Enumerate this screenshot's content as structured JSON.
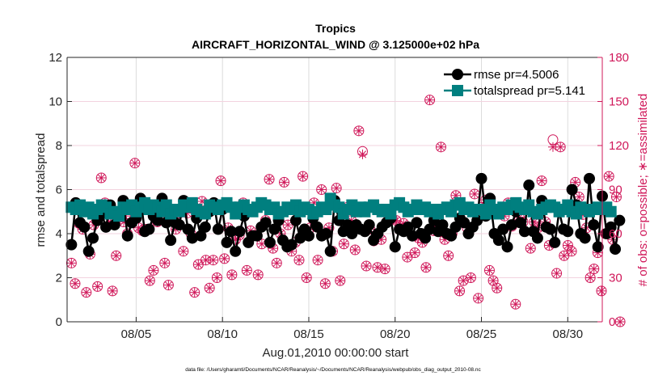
{
  "chart_data": {
    "type": "line",
    "title": "Tropics",
    "subtitle": "AIRCRAFT_HORIZONTAL_WIND @ 3.125000e+02 hPa",
    "xlabel": "Aug.01,2010 00:00:00 start",
    "ylabel": "rmse and totalspread",
    "y2label": "# of obs: o=possible; ∗=assimilated",
    "footnote": "data file: /Users/gharamti/Documents/NCAR/Reanalysis/~/Documents/NCAR/Reanalysis/webpub/obs_diag_output_2010-08.nc",
    "x_unit": "day of August 2010",
    "xlim": [
      1.0,
      32.0
    ],
    "ylim": [
      0,
      12
    ],
    "y2lim": [
      0,
      180
    ],
    "x_ticks": [
      5,
      10,
      15,
      20,
      25,
      30
    ],
    "x_tick_labels": [
      "08/05",
      "08/10",
      "08/15",
      "08/20",
      "08/25",
      "08/30"
    ],
    "y_ticks": [
      0,
      2,
      4,
      6,
      8,
      10,
      12
    ],
    "y_tick_labels": [
      "0",
      "2",
      "4",
      "6",
      "8",
      "10",
      "12"
    ],
    "y2_ticks": [
      0,
      30,
      60,
      90,
      120,
      150,
      180
    ],
    "y2_tick_labels": [
      "0",
      "30",
      "60",
      "90",
      "120",
      "150",
      "180"
    ],
    "grid": true,
    "legend_position": "top-right",
    "x_start": 1.25,
    "x_step": 0.25,
    "series": [
      {
        "name": "rmse pr=4.5006",
        "axis": "left",
        "color": "#000000",
        "marker": "circle",
        "values": [
          3.5,
          5.4,
          4.5,
          4.3,
          3.2,
          3.8,
          4.6,
          4.9,
          4.3,
          5.3,
          4.4,
          4.9,
          5.5,
          3.9,
          4.5,
          4.7,
          5.6,
          4.1,
          4.2,
          4.8,
          4.6,
          5.6,
          4.5,
          3.7,
          4.5,
          4.4,
          5.5,
          4.2,
          3.8,
          4.7,
          3.9,
          4.3,
          5.0,
          5.4,
          4.2,
          5.1,
          3.6,
          4.1,
          3.2,
          4.1,
          4.8,
          3.6,
          3.9,
          3.9,
          4.3,
          4.5,
          3.6,
          4.2,
          4.6,
          3.7,
          3.4,
          3.5,
          4.6,
          3.8,
          4.2,
          3.9,
          4.7,
          4.3,
          3.9,
          4.0,
          3.2,
          5.5,
          4.6,
          4.1,
          4.4,
          4.0,
          4.4,
          4.2,
          4.1,
          4.4,
          3.7,
          4.0,
          4.3,
          4.5,
          4.7,
          3.4,
          4.2,
          4.1,
          4.3,
          3.9,
          4.5,
          4.0,
          3.8,
          4.2,
          4.6,
          4.1,
          4.4,
          4.0,
          3.9,
          4.3,
          4.7,
          4.5,
          4.0,
          4.3,
          4.6,
          6.5,
          4.8,
          5.6,
          4.0,
          3.7,
          4.2,
          3.4,
          4.4,
          5.0,
          4.5,
          4.1,
          6.2,
          4.1,
          3.8,
          5.5,
          4.3,
          4.2,
          3.6,
          5.0,
          4.2,
          4.1,
          6.0,
          5.3,
          4.0,
          3.8,
          6.5,
          4.4,
          3.4,
          5.7,
          4.0,
          4.3,
          3.3,
          4.6
        ]
      },
      {
        "name": "totalspread pr=5.141",
        "axis": "left",
        "color": "#007f7f",
        "marker": "square",
        "values": [
          5.2,
          5.1,
          5.3,
          5.0,
          5.2,
          4.9,
          5.1,
          5.3,
          5.2,
          4.9,
          5.0,
          4.8,
          5.2,
          5.1,
          5.3,
          5.0,
          5.2,
          5.4,
          5.1,
          5.3,
          5.2,
          5.0,
          5.3,
          4.9,
          5.1,
          5.0,
          5.3,
          5.2,
          5.4,
          5.1,
          5.0,
          4.9,
          5.3,
          5.2,
          5.1,
          5.3,
          5.4,
          5.2,
          4.9,
          5.2,
          5.3,
          5.1,
          5.0,
          5.2,
          5.4,
          5.3,
          5.1,
          5.2,
          4.9,
          5.0,
          5.2,
          5.1,
          5.3,
          5.0,
          5.2,
          5.1,
          4.9,
          5.0,
          5.2,
          5.1,
          5.6,
          5.3,
          5.2,
          4.9,
          5.1,
          5.3,
          5.0,
          5.2,
          5.0,
          5.2,
          5.3,
          5.1,
          5.0,
          5.1,
          4.9,
          5.3,
          5.4,
          5.2,
          5.0,
          5.1,
          5.3,
          5.1,
          5.2,
          5.0,
          5.1,
          4.9,
          5.1,
          5.2,
          5.0,
          5.3,
          5.4,
          5.1,
          5.2,
          5.0,
          5.1,
          5.1,
          4.9,
          5.3,
          5.1,
          4.9,
          5.2,
          5.1,
          5.3,
          5.4,
          5.2,
          5.1,
          5.3,
          5.0,
          4.9,
          5.1,
          5.2,
          5.3,
          5.2,
          5.0,
          5.1,
          5.3,
          5.0,
          4.9,
          5.2,
          5.1,
          5.0,
          5.1,
          5.2,
          5.1,
          5.2,
          5.0
        ]
      },
      {
        "name": "# obs possible",
        "axis": "right",
        "color": "#d0185a",
        "marker": "open-circle",
        "values": [
          40,
          26,
          67,
          63,
          20,
          46,
          66,
          24,
          98,
          81,
          68,
          21,
          45,
          70,
          68,
          60,
          72,
          108,
          64,
          62,
          63,
          28,
          35,
          68,
          73,
          40,
          25,
          72,
          63,
          74,
          48,
          74,
          60,
          20,
          39,
          82,
          42,
          23,
          42,
          30,
          96,
          43,
          64,
          32,
          56,
          59,
          81,
          35,
          62,
          59,
          32,
          53,
          69,
          97,
          50,
          40,
          60,
          95,
          66,
          48,
          54,
          42,
          99,
          30,
          64,
          81,
          42,
          90,
          26,
          64,
          48,
          91,
          28,
          53,
          78,
          69,
          49,
          130,
          116,
          38,
          63,
          55,
          37,
          56,
          36,
          72,
          70,
          69,
          65,
          67,
          44,
          76,
          47,
          57,
          54,
          37,
          151,
          62,
          63,
          119,
          56,
          45,
          60,
          86,
          21,
          28,
          64,
          30,
          87,
          16,
          78,
          83,
          35,
          28,
          23,
          75,
          72,
          81,
          65,
          12,
          71,
          68,
          77,
          50,
          68,
          64,
          96,
          68,
          52,
          124,
          33,
          119,
          45,
          52,
          48,
          95,
          85,
          73,
          64,
          30,
          36,
          47,
          21,
          60,
          99,
          56,
          85,
          0
        ]
      },
      {
        "name": "# obs assimilated",
        "axis": "right",
        "color": "#d0185a",
        "marker": "asterisk",
        "values": [
          40,
          26,
          67,
          63,
          20,
          46,
          66,
          24,
          98,
          81,
          68,
          21,
          45,
          70,
          68,
          60,
          72,
          108,
          64,
          62,
          63,
          28,
          35,
          68,
          73,
          40,
          25,
          72,
          63,
          74,
          48,
          74,
          60,
          20,
          39,
          82,
          42,
          23,
          42,
          30,
          96,
          43,
          64,
          32,
          56,
          59,
          81,
          35,
          62,
          59,
          32,
          53,
          69,
          97,
          50,
          40,
          60,
          95,
          66,
          48,
          54,
          42,
          99,
          30,
          64,
          81,
          42,
          90,
          26,
          64,
          48,
          91,
          28,
          53,
          78,
          69,
          49,
          130,
          114,
          38,
          63,
          55,
          37,
          56,
          36,
          72,
          70,
          69,
          65,
          67,
          44,
          76,
          47,
          57,
          54,
          37,
          151,
          62,
          63,
          119,
          56,
          45,
          60,
          86,
          21,
          28,
          64,
          30,
          87,
          16,
          78,
          83,
          35,
          28,
          23,
          75,
          72,
          81,
          65,
          12,
          71,
          68,
          77,
          50,
          68,
          64,
          96,
          68,
          52,
          119,
          33,
          119,
          45,
          52,
          48,
          95,
          85,
          73,
          64,
          30,
          36,
          47,
          21,
          60,
          99,
          56,
          85,
          0
        ]
      }
    ]
  }
}
